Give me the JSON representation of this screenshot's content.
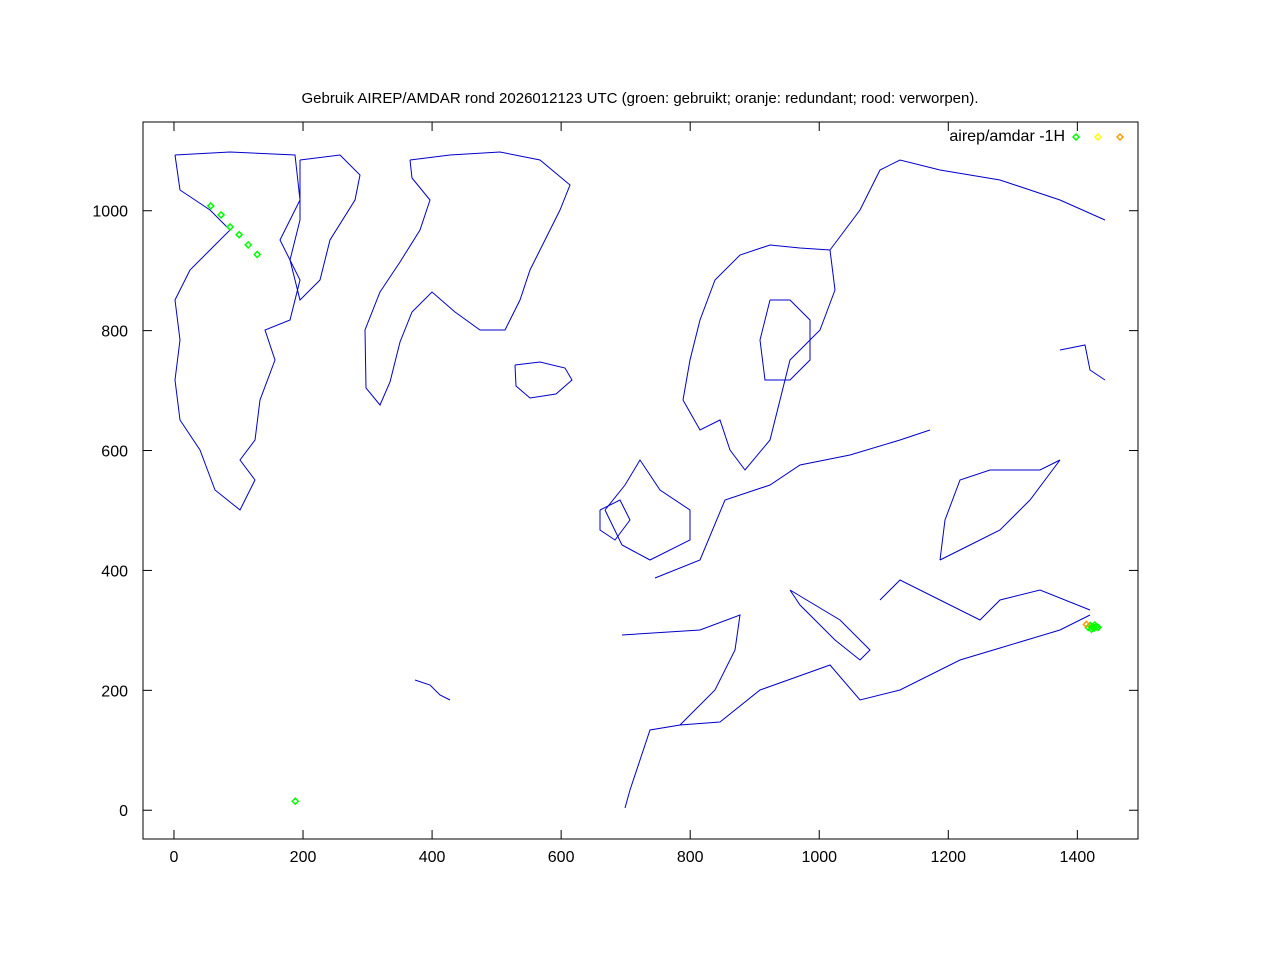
{
  "chart_data": {
    "type": "scatter",
    "title": "Gebruik AIREP/AMDAR rond 2026012123 UTC (groen: gebruikt; oranje: redundant; rood: verworpen).",
    "xlabel": "",
    "ylabel": "",
    "xlim": [
      -48,
      1494
    ],
    "ylim": [
      -48,
      1148
    ],
    "x_ticks": [
      0,
      200,
      400,
      600,
      800,
      1000,
      1200,
      1400
    ],
    "y_ticks": [
      0,
      200,
      400,
      600,
      800,
      1000
    ],
    "grid": false,
    "background": "coastline map of North Atlantic / Europe (blue)",
    "legend": {
      "position": "top-right",
      "label": "airep/amdar -1H",
      "marker_colors": [
        "#00ff00",
        "#ffff00",
        "#ff9900"
      ]
    },
    "series": [
      {
        "color": "#00ff00",
        "points": [
          [
            57,
            1008
          ],
          [
            73,
            993
          ],
          [
            87,
            973
          ],
          [
            101,
            960
          ],
          [
            115,
            943
          ],
          [
            129,
            927
          ],
          [
            188,
            15
          ],
          [
            1417,
            305
          ],
          [
            1420,
            308
          ],
          [
            1423,
            306
          ],
          [
            1426,
            304
          ],
          [
            1429,
            306
          ],
          [
            1432,
            305
          ],
          [
            1422,
            302
          ],
          [
            1427,
            309
          ]
        ]
      },
      {
        "color": "#ff9900",
        "points": [
          [
            1414,
            310
          ]
        ]
      }
    ]
  }
}
